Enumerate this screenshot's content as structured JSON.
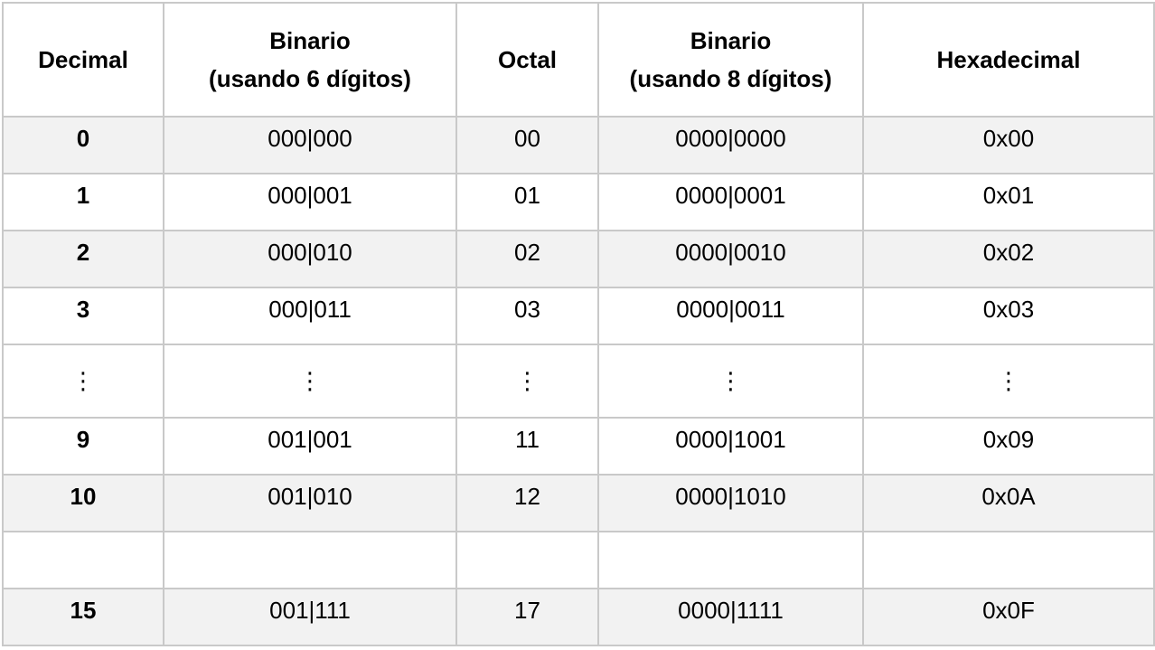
{
  "headers": [
    [
      "Decimal"
    ],
    [
      "Binario",
      "(usando 6 dígitos)"
    ],
    [
      "Octal"
    ],
    [
      "Binario",
      "(usando 8 dígitos)"
    ],
    [
      "Hexadecimal"
    ]
  ],
  "rows": [
    {
      "type": "shaded",
      "cells": [
        "0",
        "000|000",
        "00",
        "0000|0000",
        "0x00"
      ]
    },
    {
      "type": "plain",
      "cells": [
        "1",
        "000|001",
        "01",
        "0000|0001",
        "0x01"
      ]
    },
    {
      "type": "shaded",
      "cells": [
        "2",
        "000|010",
        "02",
        "0000|0010",
        "0x02"
      ]
    },
    {
      "type": "plain",
      "cells": [
        "3",
        "000|011",
        "03",
        "0000|0011",
        "0x03"
      ]
    },
    {
      "type": "dots",
      "cells": [
        "⋮",
        "⋮",
        "⋮",
        "⋮",
        "⋮"
      ]
    },
    {
      "type": "plain",
      "cells": [
        "9",
        "001|001",
        "11",
        "0000|1001",
        "0x09"
      ]
    },
    {
      "type": "shaded",
      "cells": [
        "10",
        "001|010",
        "12",
        "0000|1010",
        "0x0A"
      ]
    },
    {
      "type": "plain",
      "cells": [
        "",
        "",
        "",
        "",
        ""
      ]
    },
    {
      "type": "shaded",
      "cells": [
        "15",
        "001|111",
        "17",
        "0000|1111",
        "0x0F"
      ]
    }
  ]
}
